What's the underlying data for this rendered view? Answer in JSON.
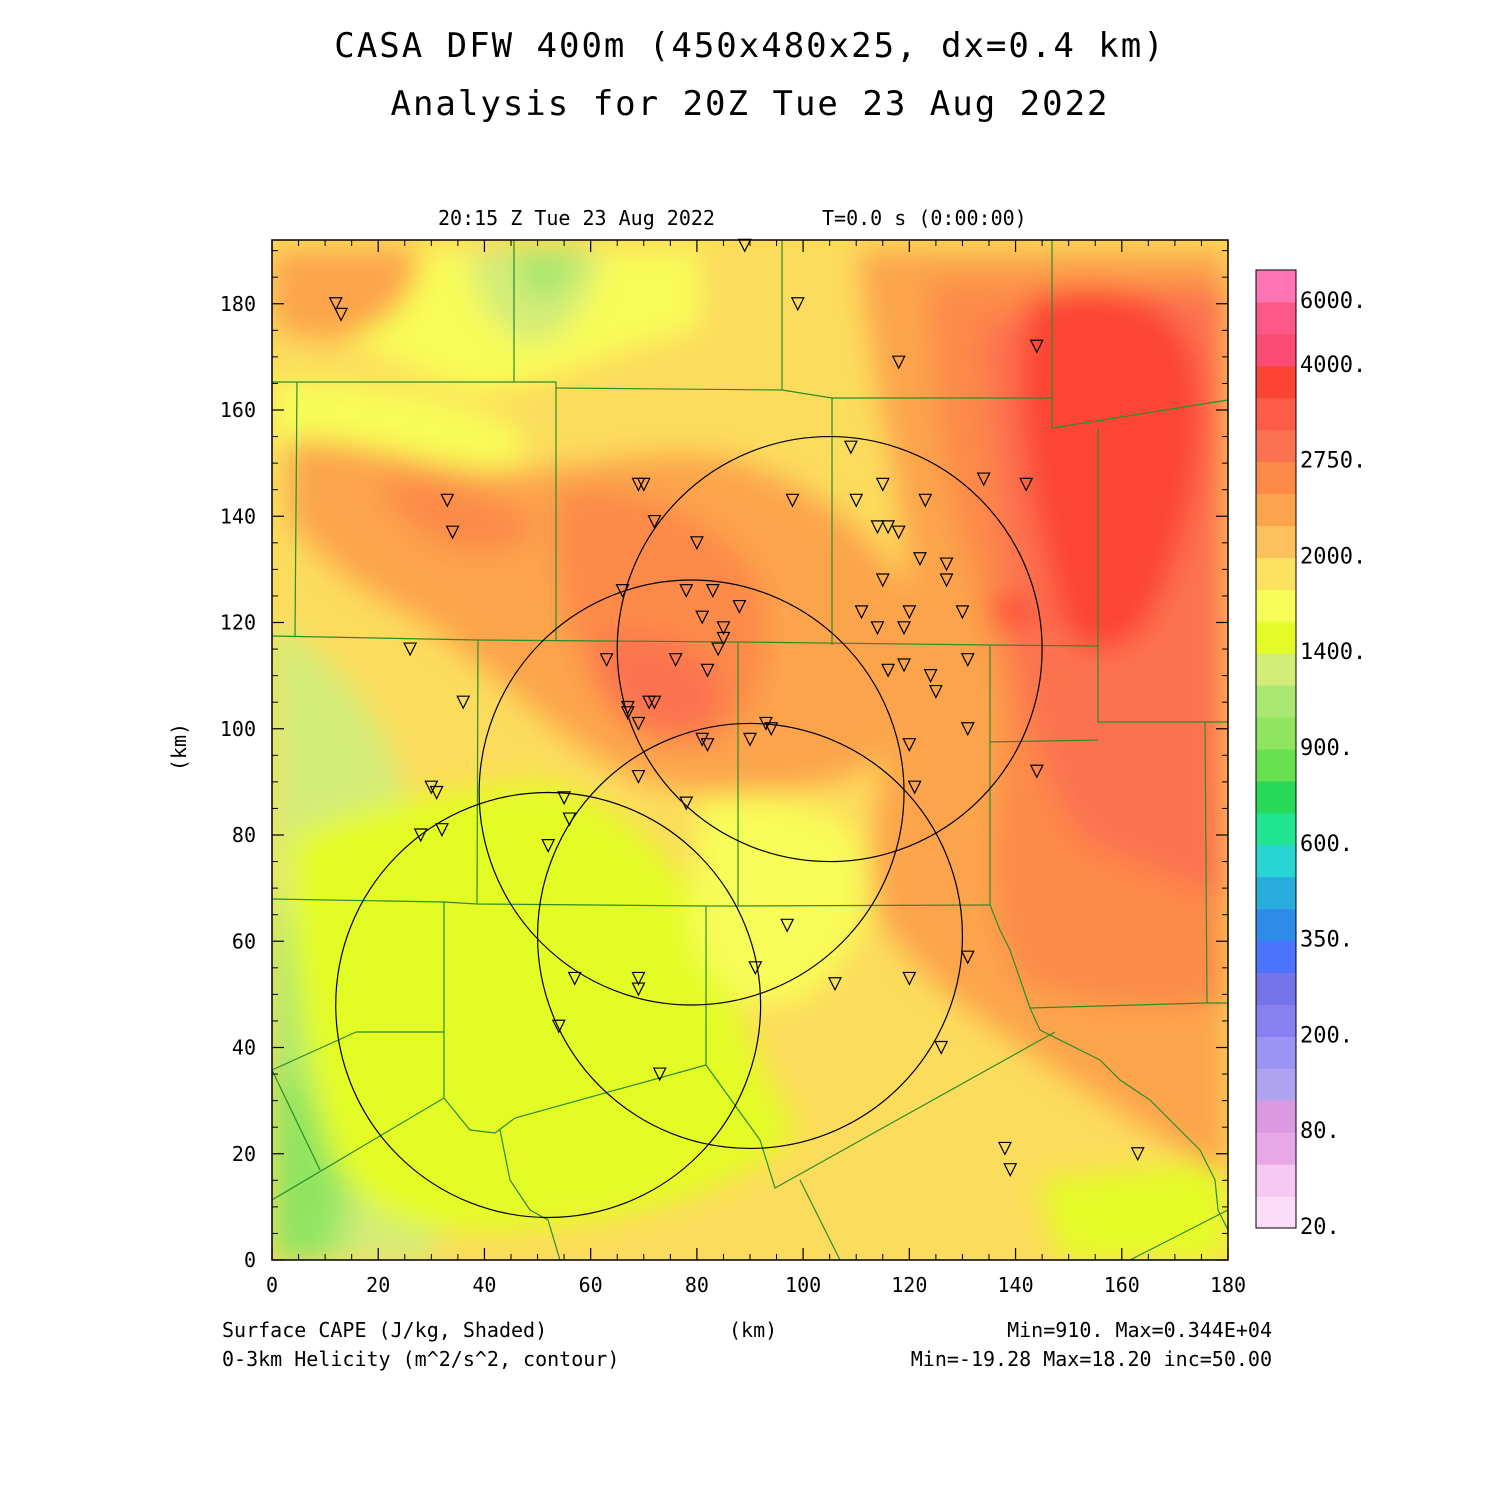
{
  "title_line1": "CASA DFW 400m (450x480x25, dx=0.4 km)",
  "title_line2": "Analysis for 20Z Tue 23 Aug 2022",
  "valid_time": "20:15 Z Tue 23 Aug 2022",
  "forecast_time": "T=0.0 s (0:00:00)",
  "x_axis_label": "(km)",
  "y_axis_label": "(km)",
  "field1_label": "Surface CAPE (J/kg, Shaded)",
  "field1_stats": "Min=910. Max=0.344E+04",
  "field2_label": "0-3km Helicity (m^2/s^2, contour)",
  "field2_stats": "Min=-19.28 Max=18.20 inc=50.00",
  "x_ticks": [
    0,
    20,
    40,
    60,
    80,
    100,
    120,
    140,
    160,
    180
  ],
  "y_ticks": [
    0,
    20,
    40,
    60,
    80,
    100,
    120,
    140,
    160,
    180
  ],
  "colorbar": {
    "colors": [
      "#fcdcfa",
      "#f4c8f0",
      "#e8a8e8",
      "#dc98e0",
      "#b0a4f0",
      "#9c94f4",
      "#8880f0",
      "#7474e8",
      "#4c74fc",
      "#2c8ce8",
      "#28acdc",
      "#28d4d4",
      "#20e490",
      "#28d858",
      "#68e050",
      "#90e460",
      "#a8e870",
      "#d4ec78",
      "#e4fc28",
      "#f8fc58",
      "#fce060",
      "#fcc05c",
      "#fca44c",
      "#fc8a48",
      "#fc7250",
      "#fc5c48",
      "#fc4434",
      "#fc4c74",
      "#fc5888",
      "#fc74b4"
    ],
    "labels": [
      {
        "text": "20.",
        "index": 0
      },
      {
        "text": "80.",
        "index": 3
      },
      {
        "text": "200.",
        "index": 6
      },
      {
        "text": "350.",
        "index": 9
      },
      {
        "text": "600.",
        "index": 12
      },
      {
        "text": "900.",
        "index": 15
      },
      {
        "text": "1400.",
        "index": 18
      },
      {
        "text": "2000.",
        "index": 21
      },
      {
        "text": "2750.",
        "index": 24
      },
      {
        "text": "4000.",
        "index": 27
      },
      {
        "text": "6000.",
        "index": 29
      }
    ]
  },
  "radar_circles_km": [
    {
      "cx": 52,
      "cy": 48,
      "r": 40
    },
    {
      "cx": 90,
      "cy": 61,
      "r": 40
    },
    {
      "cx": 79,
      "cy": 88,
      "r": 40
    },
    {
      "cx": 105,
      "cy": 115,
      "r": 40
    }
  ],
  "stations_km": [
    [
      12,
      180
    ],
    [
      13,
      178
    ],
    [
      89,
      191
    ],
    [
      99,
      180
    ],
    [
      118,
      169
    ],
    [
      144,
      172
    ],
    [
      33,
      143
    ],
    [
      34,
      137
    ],
    [
      69,
      146
    ],
    [
      70,
      146
    ],
    [
      72,
      139
    ],
    [
      80,
      135
    ],
    [
      98,
      143
    ],
    [
      109,
      153
    ],
    [
      110,
      143
    ],
    [
      114,
      138
    ],
    [
      115,
      146
    ],
    [
      116,
      138
    ],
    [
      118,
      137
    ],
    [
      123,
      143
    ],
    [
      134,
      147
    ],
    [
      142,
      146
    ],
    [
      122,
      132
    ],
    [
      127,
      131
    ],
    [
      127,
      128
    ],
    [
      115,
      128
    ],
    [
      66,
      126
    ],
    [
      78,
      126
    ],
    [
      83,
      126
    ],
    [
      88,
      123
    ],
    [
      81,
      121
    ],
    [
      111,
      122
    ],
    [
      114,
      119
    ],
    [
      119,
      119
    ],
    [
      120,
      122
    ],
    [
      130,
      122
    ],
    [
      85,
      119
    ],
    [
      85,
      117
    ],
    [
      84,
      115
    ],
    [
      26,
      115
    ],
    [
      63,
      113
    ],
    [
      76,
      113
    ],
    [
      82,
      111
    ],
    [
      116,
      111
    ],
    [
      119,
      112
    ],
    [
      124,
      110
    ],
    [
      125,
      107
    ],
    [
      131,
      113
    ],
    [
      36,
      105
    ],
    [
      67,
      104
    ],
    [
      67,
      103
    ],
    [
      71,
      105
    ],
    [
      72,
      105
    ],
    [
      69,
      101
    ],
    [
      93,
      101
    ],
    [
      94,
      100
    ],
    [
      81,
      98
    ],
    [
      82,
      97
    ],
    [
      90,
      98
    ],
    [
      120,
      97
    ],
    [
      131,
      100
    ],
    [
      30,
      89
    ],
    [
      31,
      88
    ],
    [
      69,
      91
    ],
    [
      78,
      86
    ],
    [
      121,
      89
    ],
    [
      144,
      92
    ],
    [
      55,
      87
    ],
    [
      56,
      83
    ],
    [
      28,
      80
    ],
    [
      32,
      81
    ],
    [
      52,
      78
    ],
    [
      97,
      63
    ],
    [
      91,
      55
    ],
    [
      106,
      52
    ],
    [
      120,
      53
    ],
    [
      131,
      57
    ],
    [
      57,
      53
    ],
    [
      69,
      53
    ],
    [
      69,
      51
    ],
    [
      54,
      44
    ],
    [
      126,
      40
    ],
    [
      73,
      35
    ],
    [
      138,
      21
    ],
    [
      139,
      17
    ],
    [
      163,
      20
    ]
  ]
}
